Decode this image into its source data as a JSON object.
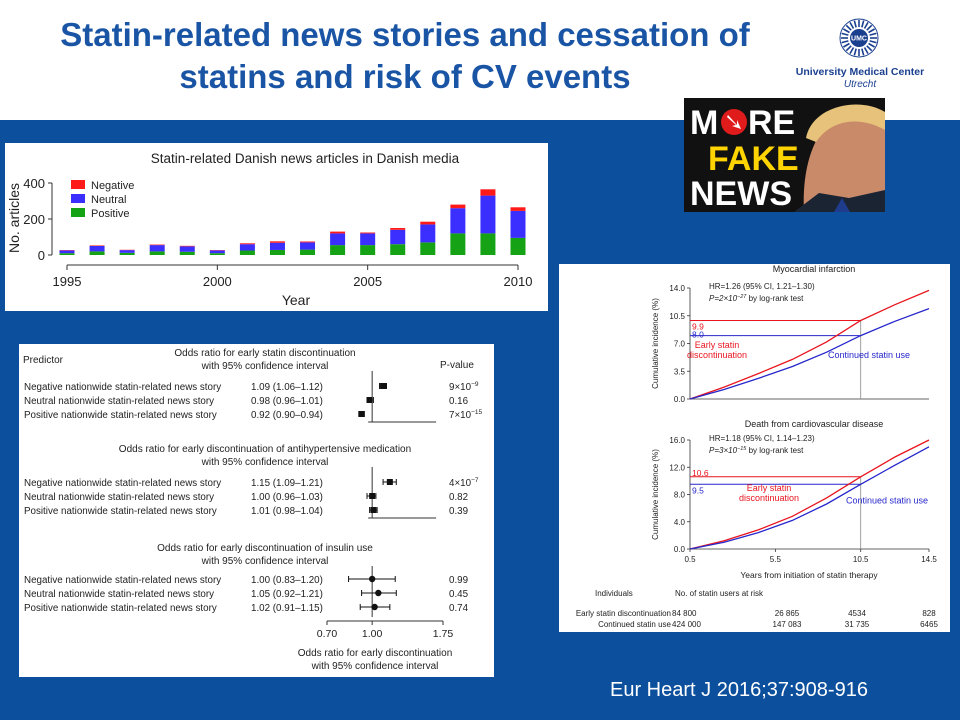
{
  "slide": {
    "title_line1": "Statin-related news stories and cessation of",
    "title_line2": "statins and risk of CV events",
    "citation": "Eur Heart J 2016;37:908-916",
    "colors": {
      "title": "#1a55a5",
      "background_band": "#0c4f9d"
    }
  },
  "logo": {
    "badge": "UMC",
    "line1": "University Medical Center",
    "line2": "Utrecht"
  },
  "news_image": {
    "line1_a": "M",
    "line1_b": "RE",
    "line2": "FAKE",
    "line3": "NEWS"
  },
  "chart_data": [
    {
      "type": "bar",
      "title": "Statin-related Danish news articles in Danish media",
      "xlabel": "Year",
      "ylabel": "No. articles",
      "ylim": [
        0,
        400
      ],
      "yticks": [
        0,
        200,
        400
      ],
      "xticks": [
        1995,
        2000,
        2005,
        2010
      ],
      "categories": [
        1995,
        1996,
        1997,
        1998,
        1999,
        2000,
        2001,
        2002,
        2003,
        2004,
        2005,
        2006,
        2007,
        2008,
        2009,
        2010
      ],
      "legend": [
        "Negative",
        "Neutral",
        "Positive"
      ],
      "legend_position": "top-left",
      "colors": {
        "Negative": "#ff1a1a",
        "Neutral": "#3b2fff",
        "Positive": "#15a215"
      },
      "series": [
        {
          "name": "Positive",
          "values": [
            10,
            20,
            12,
            20,
            18,
            10,
            25,
            28,
            30,
            55,
            55,
            60,
            70,
            120,
            120,
            95
          ]
        },
        {
          "name": "Neutral",
          "values": [
            15,
            30,
            15,
            35,
            30,
            15,
            35,
            40,
            40,
            65,
            65,
            80,
            100,
            140,
            210,
            150
          ]
        },
        {
          "name": "Negative",
          "values": [
            2,
            3,
            2,
            3,
            3,
            2,
            5,
            8,
            5,
            10,
            5,
            10,
            15,
            20,
            35,
            20
          ]
        }
      ]
    },
    {
      "type": "table",
      "header_predictor": "Predictor",
      "header_p": "P-value",
      "axis_ticks": [
        "0.70",
        "1.00",
        "1.75"
      ],
      "axis_title_1": "Odds ratio for early discontinuation",
      "axis_title_2": "with 95% confidence interval",
      "groups": [
        {
          "title_1": "Odds ratio for early statin discontinuation",
          "title_2": "with 95% confidence interval",
          "rows": [
            {
              "label": "Negative nationwide statin-related news story",
              "or_text": "1.09 (1.06–1.12)",
              "or": 1.09,
              "lo": 1.06,
              "hi": 1.12,
              "p_text": "9×10",
              "p_exp": "−9"
            },
            {
              "label": "Neutral nationwide statin-related news story",
              "or_text": "0.98 (0.96–1.01)",
              "or": 0.98,
              "lo": 0.96,
              "hi": 1.01,
              "p_text": "0.16",
              "p_exp": ""
            },
            {
              "label": "Positive nationwide statin-related news story",
              "or_text": "0.92 (0.90–0.94)",
              "or": 0.92,
              "lo": 0.9,
              "hi": 0.94,
              "p_text": "7×10",
              "p_exp": "−15"
            }
          ]
        },
        {
          "title_1": "Odds ratio for early discontinuation of antihypertensive medication",
          "title_2": "with 95% confidence interval",
          "rows": [
            {
              "label": "Negative nationwide statin-related news story",
              "or_text": "1.15 (1.09–1.21)",
              "or": 1.15,
              "lo": 1.09,
              "hi": 1.21,
              "p_text": "4×10",
              "p_exp": "−7"
            },
            {
              "label": "Neutral nationwide statin-related news story",
              "or_text": "1.00 (0.96–1.03)",
              "or": 1.0,
              "lo": 0.96,
              "hi": 1.03,
              "p_text": "0.82",
              "p_exp": ""
            },
            {
              "label": "Positive nationwide statin-related news story",
              "or_text": "1.01 (0.98–1.04)",
              "or": 1.01,
              "lo": 0.98,
              "hi": 1.04,
              "p_text": "0.39",
              "p_exp": ""
            }
          ]
        },
        {
          "title_1": "Odds ratio for early discontinuation of insulin use",
          "title_2": "with 95% confidence interval",
          "rows": [
            {
              "label": "Negative nationwide statin-related news story",
              "or_text": "1.00 (0.83–1.20)",
              "or": 1.0,
              "lo": 0.83,
              "hi": 1.2,
              "p_text": "0.99",
              "p_exp": ""
            },
            {
              "label": "Neutral nationwide statin-related news story",
              "or_text": "1.05 (0.92–1.21)",
              "or": 1.05,
              "lo": 0.92,
              "hi": 1.21,
              "p_text": "0.45",
              "p_exp": ""
            },
            {
              "label": "Positive nationwide statin-related news story",
              "or_text": "1.02 (0.91–1.15)",
              "or": 1.02,
              "lo": 0.91,
              "hi": 1.15,
              "p_text": "0.74",
              "p_exp": ""
            }
          ]
        }
      ]
    },
    {
      "type": "line",
      "xlabel": "Years from initiation of statin therapy",
      "ylabel": "Cumulative incidence (%)",
      "xticks": [
        "0.5",
        "5.5",
        "10.5",
        "14.5"
      ],
      "xlim": [
        0.5,
        14.5
      ],
      "marker_x": 10.5,
      "panels": [
        {
          "title": "Myocardial infarction",
          "hr": "HR=1.26 (95% CI, 1.21–1.30)",
          "p_line": "P=2×10",
          "p_exp": "−27",
          "p_suffix": "by log-rank test",
          "ylim": [
            0,
            14
          ],
          "yticks": [
            "0.0",
            "3.5",
            "7.0",
            "10.5",
            "14.0"
          ],
          "red_label": "9.9",
          "blue_label": "8.0",
          "red_value": 9.9,
          "blue_value": 8.0,
          "series": [
            {
              "name": "Early statin discontinuation",
              "color": "#e8141e",
              "x": [
                0.5,
                2.5,
                4.5,
                6.5,
                8.5,
                10.5,
                12.5,
                14.5
              ],
              "y": [
                0,
                1.5,
                3.2,
                5.0,
                7.2,
                9.9,
                11.9,
                13.7
              ]
            },
            {
              "name": "Continued statin use",
              "color": "#2626cc",
              "x": [
                0.5,
                2.5,
                4.5,
                6.5,
                8.5,
                10.5,
                12.5,
                14.5
              ],
              "y": [
                0,
                1.2,
                2.6,
                4.1,
                5.9,
                8.0,
                9.8,
                11.4
              ]
            }
          ]
        },
        {
          "title": "Death from cardiovascular disease",
          "hr": "HR=1.18 (95% CI, 1.14–1.23)",
          "p_line": "P=3×10",
          "p_exp": "−15",
          "p_suffix": "by log-rank test",
          "ylim": [
            0,
            16
          ],
          "yticks": [
            "0.0",
            "4.0",
            "8.0",
            "12.0",
            "16.0"
          ],
          "red_label": "10.6",
          "blue_label": "9.5",
          "red_value": 10.6,
          "blue_value": 9.5,
          "series": [
            {
              "name": "Early statin discontinuation",
              "color": "#e8141e",
              "x": [
                0.5,
                2.5,
                4.5,
                6.5,
                8.5,
                10.5,
                12.5,
                14.5
              ],
              "y": [
                0,
                1.2,
                2.8,
                4.8,
                7.5,
                10.6,
                13.5,
                16.0
              ]
            },
            {
              "name": "Continued statin use",
              "color": "#2626cc",
              "x": [
                0.5,
                2.5,
                4.5,
                6.5,
                8.5,
                10.5,
                12.5,
                14.5
              ],
              "y": [
                0,
                1.0,
                2.4,
                4.2,
                6.6,
                9.5,
                12.3,
                15.0
              ]
            }
          ]
        }
      ],
      "at_risk": {
        "header_left": "Individuals",
        "header_right": "No. of statin users at risk",
        "rows": [
          {
            "label": "Early statin discontinuation",
            "values": [
              "84 800",
              "26 865",
              "4534",
              "828"
            ]
          },
          {
            "label": "Continued statin use",
            "values": [
              "424 000",
              "147 083",
              "31 735",
              "6465"
            ]
          }
        ]
      }
    }
  ]
}
